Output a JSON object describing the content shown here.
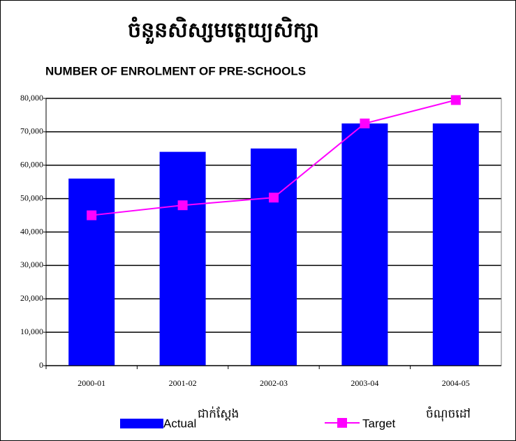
{
  "chart_data": {
    "type": "bar_line",
    "title": "ចំនួនសិស្សមត្តេយ្យសិក្សា",
    "subtitle": "NUMBER OF ENROLMENT OF PRE-SCHOOLS",
    "categories": [
      "2000-01",
      "2001-02",
      "2002-03",
      "2003-04",
      "2004-05"
    ],
    "series": [
      {
        "name": "Actual",
        "local_name": "ជាក់ស្តែង",
        "kind": "bar",
        "color": "#0000ff",
        "values": [
          56000,
          64000,
          65000,
          72500,
          72500
        ]
      },
      {
        "name": "Target",
        "local_name": "ចំណុចដៅ",
        "kind": "line",
        "color": "#ff00ff",
        "values": [
          45000,
          48000,
          50300,
          72500,
          79500
        ]
      }
    ],
    "ylim": [
      0,
      80000
    ],
    "yticks": [
      0,
      {
        "value": 10000,
        "label": "10,000"
      },
      {
        "value": 20000,
        "label": "20,000"
      },
      {
        "value": 30000,
        "label": "30,000"
      },
      {
        "value": 40000,
        "label": "40,000"
      },
      {
        "value": 50000,
        "label": "50,000"
      },
      {
        "value": 60000,
        "label": "60,000"
      },
      {
        "value": 70000,
        "label": "70,000"
      },
      {
        "value": 80000,
        "label": "80,000"
      }
    ],
    "grid": true,
    "legend": "bottom"
  }
}
